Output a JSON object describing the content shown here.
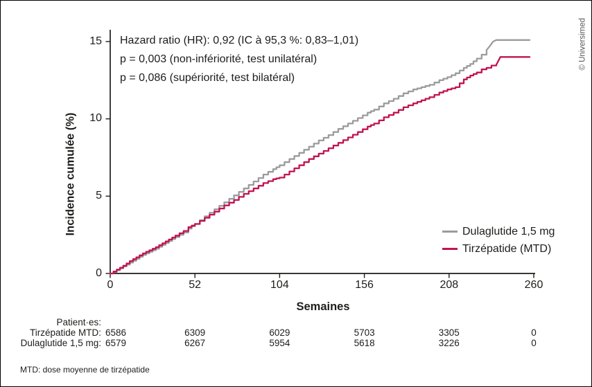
{
  "watermark": "© Universimed",
  "annotation": {
    "line1": "Hazard ratio (HR): 0,92 (IC à 95,3 %: 0,83–1,01)",
    "line2": "p = 0,003 (non-infériorité, test unilatéral)",
    "line3": "p = 0,086 (supériorité, test bilatéral)"
  },
  "colors": {
    "axis": "#1d1d1b",
    "text": "#1d1d1b",
    "dulaglutide": "#9b9b9b",
    "tirzepatide": "#c01251"
  },
  "chart_data": {
    "type": "line",
    "subtype": "cumulative-incidence-step-curves",
    "title": "",
    "xlabel": "Semaines",
    "ylabel": "Incidence cumulée (%)",
    "xlim": [
      0,
      260
    ],
    "ylim": [
      0,
      15
    ],
    "xticks": [
      0,
      52,
      104,
      156,
      208,
      260
    ],
    "yticks": [
      0,
      5,
      10,
      15
    ],
    "grid": false,
    "legend_position": "inside-right-middle",
    "series": [
      {
        "name": "Dulaglutide 1,5 mg",
        "color": "#9b9b9b",
        "points": [
          [
            0,
            0
          ],
          [
            4,
            0.2
          ],
          [
            8,
            0.45
          ],
          [
            12,
            0.7
          ],
          [
            16,
            0.95
          ],
          [
            20,
            1.2
          ],
          [
            24,
            1.4
          ],
          [
            28,
            1.6
          ],
          [
            32,
            1.85
          ],
          [
            36,
            2.1
          ],
          [
            40,
            2.35
          ],
          [
            45,
            2.65
          ],
          [
            48,
            2.9
          ],
          [
            52,
            3.2
          ],
          [
            58,
            3.7
          ],
          [
            64,
            4.15
          ],
          [
            70,
            4.6
          ],
          [
            76,
            5.05
          ],
          [
            82,
            5.5
          ],
          [
            88,
            5.95
          ],
          [
            94,
            6.4
          ],
          [
            100,
            6.75
          ],
          [
            104,
            7.0
          ],
          [
            110,
            7.4
          ],
          [
            116,
            7.8
          ],
          [
            122,
            8.2
          ],
          [
            128,
            8.6
          ],
          [
            134,
            8.95
          ],
          [
            140,
            9.35
          ],
          [
            146,
            9.7
          ],
          [
            152,
            10.05
          ],
          [
            158,
            10.4
          ],
          [
            162,
            10.6
          ],
          [
            168,
            11.0
          ],
          [
            174,
            11.3
          ],
          [
            180,
            11.65
          ],
          [
            186,
            11.9
          ],
          [
            191,
            12.05
          ],
          [
            196,
            12.2
          ],
          [
            202,
            12.5
          ],
          [
            207,
            12.7
          ],
          [
            212,
            12.95
          ],
          [
            217,
            13.3
          ],
          [
            221,
            13.55
          ],
          [
            225,
            13.9
          ],
          [
            228,
            14.15
          ],
          [
            231,
            14.45
          ],
          [
            233,
            14.7
          ],
          [
            235,
            15.0
          ],
          [
            237,
            15.1
          ],
          [
            257.5,
            15.1
          ]
        ]
      },
      {
        "name": "Tirzépatide (MTD)",
        "color": "#c01251",
        "points": [
          [
            0,
            0
          ],
          [
            4,
            0.25
          ],
          [
            8,
            0.5
          ],
          [
            12,
            0.8
          ],
          [
            16,
            1.05
          ],
          [
            20,
            1.3
          ],
          [
            24,
            1.5
          ],
          [
            28,
            1.7
          ],
          [
            32,
            1.95
          ],
          [
            36,
            2.2
          ],
          [
            40,
            2.45
          ],
          [
            45,
            2.75
          ],
          [
            48,
            3.0
          ],
          [
            52,
            3.2
          ],
          [
            58,
            3.6
          ],
          [
            64,
            4.0
          ],
          [
            70,
            4.4
          ],
          [
            76,
            4.75
          ],
          [
            82,
            5.15
          ],
          [
            88,
            5.5
          ],
          [
            94,
            5.85
          ],
          [
            100,
            6.1
          ],
          [
            104,
            6.2
          ],
          [
            110,
            6.6
          ],
          [
            116,
            7.0
          ],
          [
            122,
            7.4
          ],
          [
            128,
            7.75
          ],
          [
            134,
            8.1
          ],
          [
            140,
            8.45
          ],
          [
            146,
            8.8
          ],
          [
            152,
            9.15
          ],
          [
            158,
            9.5
          ],
          [
            162,
            9.7
          ],
          [
            168,
            10.1
          ],
          [
            174,
            10.4
          ],
          [
            180,
            10.75
          ],
          [
            186,
            11.0
          ],
          [
            191,
            11.2
          ],
          [
            196,
            11.4
          ],
          [
            202,
            11.7
          ],
          [
            207,
            11.9
          ],
          [
            212,
            12.05
          ],
          [
            217,
            12.55
          ],
          [
            221,
            12.8
          ],
          [
            225,
            13.0
          ],
          [
            228,
            13.2
          ],
          [
            231,
            13.3
          ],
          [
            234,
            13.45
          ],
          [
            237,
            13.5
          ],
          [
            239.5,
            14.0
          ],
          [
            257.5,
            14.0
          ]
        ]
      }
    ]
  },
  "risk_table": {
    "header": "Patient·es:",
    "rows": [
      {
        "label": "Tirzépatide MTD:",
        "values": [
          "6586",
          "6309",
          "6029",
          "5703",
          "3305",
          "0"
        ]
      },
      {
        "label": "Dulaglutide 1,5 mg:",
        "values": [
          "6579",
          "6267",
          "5954",
          "5618",
          "3226",
          "0"
        ]
      }
    ],
    "footnote": "MTD: dose moyenne de tirzépatide"
  }
}
